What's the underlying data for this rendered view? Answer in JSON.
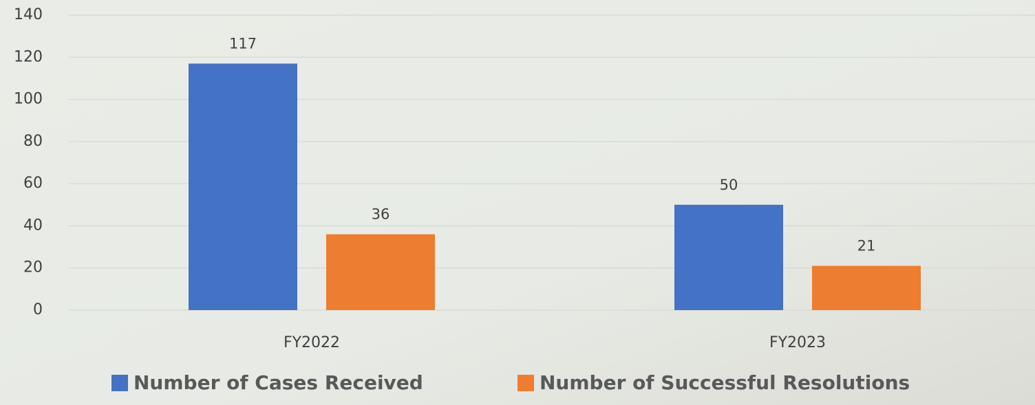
{
  "chart_data": {
    "type": "bar",
    "categories": [
      "FY2022",
      "FY2023"
    ],
    "series": [
      {
        "name": "Number of Cases Received",
        "color": "#4472c4",
        "values": [
          117,
          50
        ]
      },
      {
        "name": "Number of Successful Resolutions",
        "color": "#ed7d31",
        "values": [
          36,
          21
        ]
      }
    ],
    "ylim": [
      0,
      140
    ],
    "yticks": [
      0,
      20,
      40,
      60,
      80,
      100,
      120,
      140
    ],
    "grid": true,
    "legend": "bottom"
  }
}
